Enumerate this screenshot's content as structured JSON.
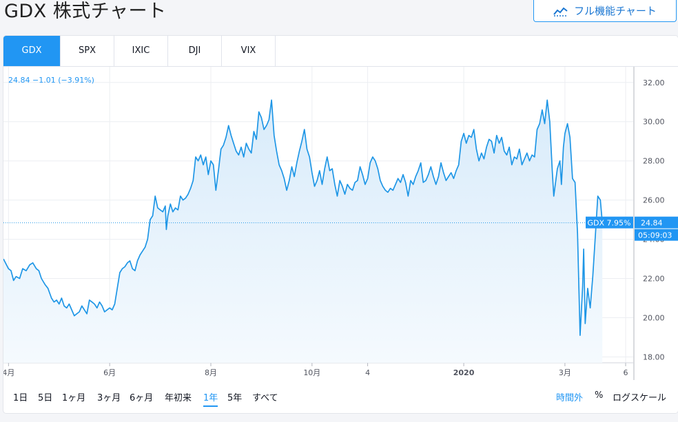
{
  "page": {
    "title": "GDX 株式チャート"
  },
  "full_chart_button": {
    "label": "フル機能チャート",
    "icon": "chart-line-icon"
  },
  "tabs": [
    {
      "label": "GDX",
      "active": true
    },
    {
      "label": "SPX",
      "active": false
    },
    {
      "label": "IXIC",
      "active": false
    },
    {
      "label": "DJI",
      "active": false
    },
    {
      "label": "VIX",
      "active": false
    }
  ],
  "quote": {
    "text": "24.84 −1.01 (−3.91%)"
  },
  "price_tag": {
    "label": "GDX 7.95%",
    "price": "24.84",
    "time": "05:09:03"
  },
  "periods": [
    {
      "label": "1日",
      "active": false
    },
    {
      "label": "5日",
      "active": false
    },
    {
      "label": "1ヶ月",
      "active": false
    },
    {
      "label": "3ヶ月",
      "active": false
    },
    {
      "label": "6ヶ月",
      "active": false
    },
    {
      "label": "年初来",
      "active": false
    },
    {
      "label": "1年",
      "active": true
    },
    {
      "label": "5年",
      "active": false
    },
    {
      "label": "すべて",
      "active": false
    }
  ],
  "options": {
    "extended_hours": "時間外",
    "percent": "%",
    "log_scale": "ログスケール"
  },
  "colors": {
    "accent": "#2196f3",
    "line": "#1e96e6",
    "fill_top": "#d8ebfa",
    "fill_bottom": "#f5fafe"
  },
  "chart_data": {
    "type": "area",
    "series_name": "GDX",
    "ylim": [
      17.7,
      32.8
    ],
    "yticks": [
      18,
      20,
      22,
      24,
      26,
      28,
      30,
      32
    ],
    "ytick_labels": [
      "18.00",
      "20.00",
      "22.00",
      "24.00",
      "26.00",
      "28.00",
      "30.00",
      "32.00"
    ],
    "xticks": [
      {
        "label": "4月",
        "x": 0.0
      },
      {
        "label": "6月",
        "x": 2.0
      },
      {
        "label": "8月",
        "x": 4.0
      },
      {
        "label": "10月",
        "x": 6.0
      },
      {
        "label": "4",
        "x": 7.1
      },
      {
        "label": "2020",
        "x": 9.0
      },
      {
        "label": "3月",
        "x": 11.0
      },
      {
        "label": "6",
        "x": 12.2
      }
    ],
    "grid": true,
    "last_value": 24.84,
    "points": [
      [
        -0.1,
        23.0
      ],
      [
        0.0,
        22.5
      ],
      [
        0.05,
        22.4
      ],
      [
        0.1,
        21.9
      ],
      [
        0.15,
        22.1
      ],
      [
        0.22,
        22.0
      ],
      [
        0.28,
        22.5
      ],
      [
        0.35,
        22.4
      ],
      [
        0.42,
        22.7
      ],
      [
        0.48,
        22.8
      ],
      [
        0.55,
        22.5
      ],
      [
        0.6,
        22.4
      ],
      [
        0.65,
        22.0
      ],
      [
        0.72,
        21.7
      ],
      [
        0.78,
        21.5
      ],
      [
        0.85,
        21.0
      ],
      [
        0.9,
        20.8
      ],
      [
        0.95,
        20.9
      ],
      [
        1.0,
        20.7
      ],
      [
        1.05,
        21.0
      ],
      [
        1.1,
        20.6
      ],
      [
        1.15,
        20.5
      ],
      [
        1.2,
        20.7
      ],
      [
        1.25,
        20.4
      ],
      [
        1.3,
        20.1
      ],
      [
        1.35,
        20.2
      ],
      [
        1.4,
        20.3
      ],
      [
        1.45,
        20.6
      ],
      [
        1.5,
        20.4
      ],
      [
        1.55,
        20.2
      ],
      [
        1.6,
        20.9
      ],
      [
        1.65,
        20.8
      ],
      [
        1.7,
        20.7
      ],
      [
        1.75,
        20.5
      ],
      [
        1.8,
        20.8
      ],
      [
        1.85,
        20.6
      ],
      [
        1.9,
        20.3
      ],
      [
        1.95,
        20.4
      ],
      [
        2.0,
        20.5
      ],
      [
        2.05,
        20.4
      ],
      [
        2.1,
        20.7
      ],
      [
        2.15,
        21.5
      ],
      [
        2.2,
        22.3
      ],
      [
        2.25,
        22.5
      ],
      [
        2.3,
        22.6
      ],
      [
        2.35,
        22.8
      ],
      [
        2.4,
        22.9
      ],
      [
        2.45,
        22.5
      ],
      [
        2.5,
        22.4
      ],
      [
        2.55,
        22.9
      ],
      [
        2.6,
        23.2
      ],
      [
        2.65,
        23.4
      ],
      [
        2.7,
        23.6
      ],
      [
        2.75,
        24.0
      ],
      [
        2.8,
        25.0
      ],
      [
        2.85,
        25.2
      ],
      [
        2.9,
        26.2
      ],
      [
        2.95,
        25.6
      ],
      [
        3.0,
        25.5
      ],
      [
        3.05,
        25.4
      ],
      [
        3.1,
        25.7
      ],
      [
        3.12,
        24.5
      ],
      [
        3.15,
        25.2
      ],
      [
        3.2,
        25.8
      ],
      [
        3.25,
        25.4
      ],
      [
        3.3,
        25.6
      ],
      [
        3.35,
        25.5
      ],
      [
        3.4,
        26.2
      ],
      [
        3.45,
        26.0
      ],
      [
        3.5,
        26.1
      ],
      [
        3.55,
        26.3
      ],
      [
        3.6,
        26.6
      ],
      [
        3.65,
        27.0
      ],
      [
        3.7,
        28.2
      ],
      [
        3.75,
        28.0
      ],
      [
        3.8,
        28.3
      ],
      [
        3.85,
        27.8
      ],
      [
        3.9,
        28.2
      ],
      [
        3.95,
        27.3
      ],
      [
        4.0,
        28.0
      ],
      [
        4.05,
        27.8
      ],
      [
        4.1,
        26.5
      ],
      [
        4.15,
        27.5
      ],
      [
        4.2,
        28.6
      ],
      [
        4.25,
        28.8
      ],
      [
        4.3,
        29.2
      ],
      [
        4.35,
        29.8
      ],
      [
        4.4,
        29.3
      ],
      [
        4.45,
        28.9
      ],
      [
        4.5,
        28.5
      ],
      [
        4.55,
        28.3
      ],
      [
        4.6,
        28.7
      ],
      [
        4.65,
        28.2
      ],
      [
        4.7,
        28.9
      ],
      [
        4.75,
        28.6
      ],
      [
        4.8,
        28.4
      ],
      [
        4.85,
        29.5
      ],
      [
        4.9,
        29.1
      ],
      [
        4.95,
        30.5
      ],
      [
        5.0,
        30.2
      ],
      [
        5.05,
        29.6
      ],
      [
        5.1,
        29.8
      ],
      [
        5.15,
        30.1
      ],
      [
        5.2,
        31.1
      ],
      [
        5.25,
        29.3
      ],
      [
        5.3,
        28.5
      ],
      [
        5.35,
        27.8
      ],
      [
        5.4,
        27.5
      ],
      [
        5.45,
        27.1
      ],
      [
        5.5,
        26.5
      ],
      [
        5.55,
        27.0
      ],
      [
        5.6,
        27.7
      ],
      [
        5.65,
        27.2
      ],
      [
        5.7,
        27.9
      ],
      [
        5.75,
        28.5
      ],
      [
        5.8,
        29.0
      ],
      [
        5.85,
        29.6
      ],
      [
        5.9,
        28.6
      ],
      [
        5.95,
        28.2
      ],
      [
        6.0,
        27.4
      ],
      [
        6.05,
        26.7
      ],
      [
        6.1,
        27.0
      ],
      [
        6.15,
        27.5
      ],
      [
        6.2,
        26.8
      ],
      [
        6.25,
        27.6
      ],
      [
        6.3,
        28.2
      ],
      [
        6.35,
        27.5
      ],
      [
        6.4,
        27.6
      ],
      [
        6.45,
        26.8
      ],
      [
        6.5,
        26.2
      ],
      [
        6.55,
        27.0
      ],
      [
        6.6,
        26.7
      ],
      [
        6.65,
        26.3
      ],
      [
        6.7,
        26.8
      ],
      [
        6.75,
        26.6
      ],
      [
        6.8,
        26.5
      ],
      [
        6.85,
        26.9
      ],
      [
        6.9,
        27.0
      ],
      [
        6.95,
        27.7
      ],
      [
        7.0,
        27.3
      ],
      [
        7.05,
        26.8
      ],
      [
        7.1,
        27.1
      ],
      [
        7.15,
        27.9
      ],
      [
        7.2,
        28.2
      ],
      [
        7.25,
        28.0
      ],
      [
        7.3,
        27.6
      ],
      [
        7.35,
        27.0
      ],
      [
        7.4,
        26.7
      ],
      [
        7.45,
        26.5
      ],
      [
        7.5,
        26.4
      ],
      [
        7.55,
        26.6
      ],
      [
        7.6,
        26.5
      ],
      [
        7.65,
        26.8
      ],
      [
        7.7,
        27.1
      ],
      [
        7.75,
        26.9
      ],
      [
        7.8,
        27.3
      ],
      [
        7.85,
        26.9
      ],
      [
        7.9,
        26.2
      ],
      [
        7.95,
        27.0
      ],
      [
        8.0,
        26.8
      ],
      [
        8.05,
        27.2
      ],
      [
        8.1,
        27.5
      ],
      [
        8.15,
        27.9
      ],
      [
        8.2,
        26.9
      ],
      [
        8.25,
        27.0
      ],
      [
        8.3,
        27.3
      ],
      [
        8.35,
        27.7
      ],
      [
        8.4,
        27.2
      ],
      [
        8.45,
        26.8
      ],
      [
        8.5,
        27.2
      ],
      [
        8.55,
        27.9
      ],
      [
        8.6,
        27.4
      ],
      [
        8.65,
        27.0
      ],
      [
        8.7,
        27.2
      ],
      [
        8.75,
        27.4
      ],
      [
        8.8,
        27.1
      ],
      [
        8.85,
        27.5
      ],
      [
        8.9,
        27.8
      ],
      [
        8.95,
        29.0
      ],
      [
        9.0,
        29.4
      ],
      [
        9.05,
        28.9
      ],
      [
        9.1,
        29.3
      ],
      [
        9.15,
        29.2
      ],
      [
        9.2,
        29.6
      ],
      [
        9.25,
        28.6
      ],
      [
        9.3,
        28.0
      ],
      [
        9.35,
        28.4
      ],
      [
        9.4,
        28.1
      ],
      [
        9.45,
        28.7
      ],
      [
        9.5,
        29.1
      ],
      [
        9.55,
        29.0
      ],
      [
        9.6,
        28.4
      ],
      [
        9.65,
        29.3
      ],
      [
        9.7,
        28.9
      ],
      [
        9.75,
        29.2
      ],
      [
        9.8,
        28.5
      ],
      [
        9.85,
        28.3
      ],
      [
        9.9,
        28.7
      ],
      [
        9.95,
        27.8
      ],
      [
        10.0,
        28.2
      ],
      [
        10.05,
        28.1
      ],
      [
        10.1,
        28.6
      ],
      [
        10.15,
        27.8
      ],
      [
        10.2,
        28.1
      ],
      [
        10.25,
        28.4
      ],
      [
        10.3,
        28.0
      ],
      [
        10.35,
        28.3
      ],
      [
        10.4,
        28.2
      ],
      [
        10.45,
        29.6
      ],
      [
        10.5,
        29.9
      ],
      [
        10.55,
        30.6
      ],
      [
        10.6,
        29.9
      ],
      [
        10.65,
        31.1
      ],
      [
        10.7,
        30.0
      ],
      [
        10.75,
        27.5
      ],
      [
        10.78,
        26.2
      ],
      [
        10.85,
        27.6
      ],
      [
        10.9,
        28.0
      ],
      [
        10.93,
        26.8
      ],
      [
        10.97,
        28.7
      ],
      [
        11.0,
        29.4
      ],
      [
        11.05,
        29.9
      ],
      [
        11.1,
        29.2
      ],
      [
        11.15,
        27.1
      ],
      [
        11.2,
        26.9
      ],
      [
        11.25,
        24.3
      ],
      [
        11.3,
        19.1
      ],
      [
        11.35,
        21.6
      ],
      [
        11.37,
        23.5
      ],
      [
        11.4,
        19.7
      ],
      [
        11.45,
        21.5
      ],
      [
        11.5,
        20.5
      ],
      [
        11.55,
        22.1
      ],
      [
        11.6,
        24.1
      ],
      [
        11.65,
        26.2
      ],
      [
        11.7,
        26.0
      ],
      [
        11.74,
        24.84
      ]
    ]
  }
}
